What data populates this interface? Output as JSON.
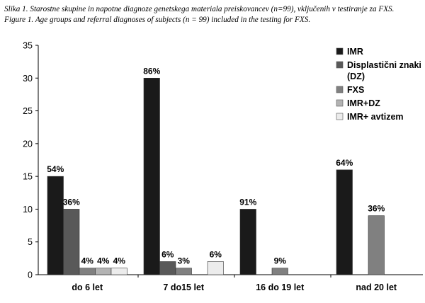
{
  "caption": {
    "line1": "Slika 1. Starostne skupine in napotne diagnoze genetskega materiala preiskovancev (n=99), vključenih v testiranje za FXS.",
    "line2": "Figure 1. Age groups and referral diagnoses of subjects (n = 99) included in the testing for FXS."
  },
  "chart_data": {
    "type": "bar",
    "categories": [
      "do 6 let",
      "7 do15 let",
      "16 do 19 let",
      "nad 20 let"
    ],
    "ylim": [
      0,
      35
    ],
    "yticks": [
      0,
      5,
      10,
      15,
      20,
      25,
      30,
      35
    ],
    "grid": false,
    "legend_position": "top-right",
    "series": [
      {
        "name": "IMR",
        "color": "#1a1a1a",
        "values": [
          15,
          30,
          10,
          16
        ],
        "labels": [
          "54%",
          "86%",
          "91%",
          "64%"
        ]
      },
      {
        "name": "Displastični znaki (DZ)",
        "legend_lines": [
          "Displastični znaki",
          "(DZ)"
        ],
        "color": "#595959",
        "values": [
          10,
          2,
          0,
          0
        ],
        "labels": [
          "36%",
          "6%",
          "",
          ""
        ]
      },
      {
        "name": "FXS",
        "color": "#808080",
        "values": [
          1,
          1,
          1,
          9
        ],
        "labels": [
          "4%",
          "3%",
          "9%",
          "36%"
        ]
      },
      {
        "name": "IMR+DZ",
        "color": "#b3b3b3",
        "values": [
          1,
          0,
          0,
          0
        ],
        "labels": [
          "4%",
          "",
          "",
          ""
        ]
      },
      {
        "name": "IMR+ avtizem",
        "color": "#ececec",
        "values": [
          1,
          2,
          0,
          0
        ],
        "labels": [
          "4%",
          "6%",
          "",
          ""
        ]
      }
    ]
  }
}
